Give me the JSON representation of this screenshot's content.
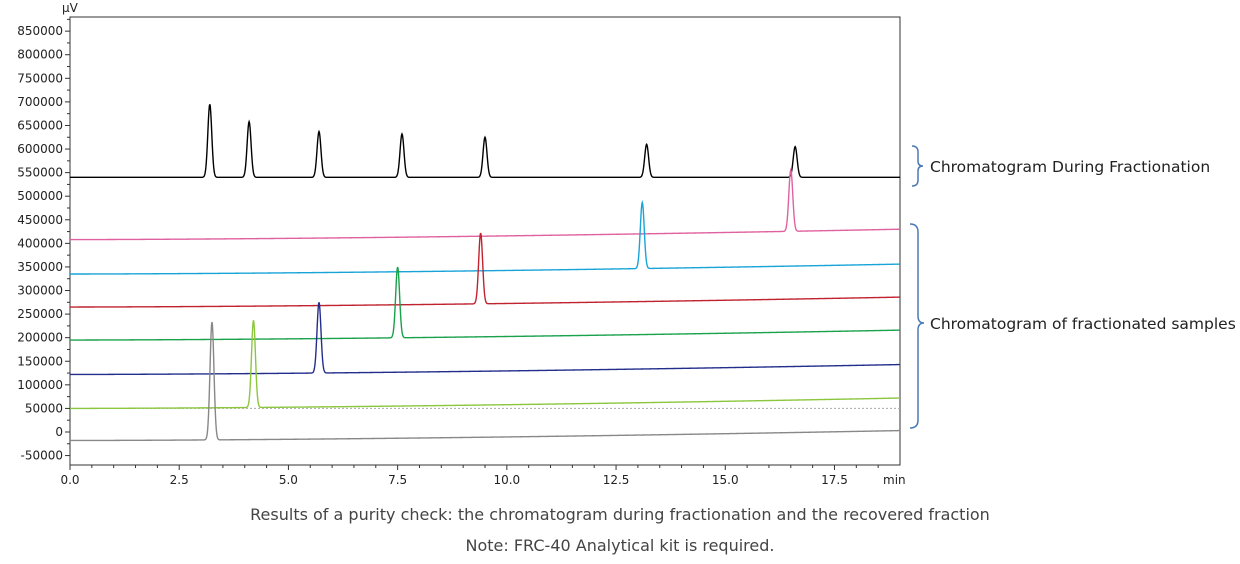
{
  "chart_data": {
    "type": "line",
    "x_unit": "min",
    "y_unit": "µV",
    "xlim": [
      0,
      19
    ],
    "ylim": [
      -70000,
      880000
    ],
    "x_ticks": [
      0.0,
      2.5,
      5.0,
      7.5,
      10.0,
      12.5,
      15.0,
      17.5
    ],
    "x_tick_labels": [
      "0.0",
      "2.5",
      "5.0",
      "7.5",
      "10.0",
      "12.5",
      "15.0",
      "17.5"
    ],
    "y_ticks": [
      -50000,
      0,
      50000,
      100000,
      150000,
      200000,
      250000,
      300000,
      350000,
      400000,
      450000,
      500000,
      550000,
      600000,
      650000,
      700000,
      750000,
      800000,
      850000
    ],
    "y_tick_labels": [
      "-50000",
      "0",
      "50000",
      "100000",
      "150000",
      "200000",
      "250000",
      "300000",
      "350000",
      "400000",
      "450000",
      "500000",
      "550000",
      "600000",
      "650000",
      "700000",
      "750000",
      "800000",
      "850000"
    ],
    "reference_line_y": 50000,
    "series": [
      {
        "color": "#000000",
        "group": "during",
        "baseline_start": 540000,
        "baseline_end": 540000,
        "peaks": [
          {
            "rt": 3.2,
            "height": 155000
          },
          {
            "rt": 4.1,
            "height": 118000
          },
          {
            "rt": 5.7,
            "height": 97000
          },
          {
            "rt": 7.6,
            "height": 92000
          },
          {
            "rt": 9.5,
            "height": 85000
          },
          {
            "rt": 13.2,
            "height": 70000
          },
          {
            "rt": 16.6,
            "height": 65000
          }
        ]
      },
      {
        "color": "#e0619f",
        "group": "fraction",
        "baseline_start": 408000,
        "baseline_end": 430000,
        "peaks": [
          {
            "rt": 16.5,
            "height": 130000
          }
        ]
      },
      {
        "color": "#19a4d8",
        "group": "fraction",
        "baseline_start": 335000,
        "baseline_end": 356000,
        "peaks": [
          {
            "rt": 13.1,
            "height": 140000
          }
        ]
      },
      {
        "color": "#c0232f",
        "group": "fraction",
        "baseline_start": 265000,
        "baseline_end": 286000,
        "peaks": [
          {
            "rt": 9.4,
            "height": 150000
          }
        ]
      },
      {
        "color": "#1aa14b",
        "group": "fraction",
        "baseline_start": 195000,
        "baseline_end": 216000,
        "peaks": [
          {
            "rt": 7.5,
            "height": 150000
          }
        ]
      },
      {
        "color": "#232e8c",
        "group": "fraction",
        "baseline_start": 122000,
        "baseline_end": 143000,
        "peaks": [
          {
            "rt": 5.7,
            "height": 150000
          }
        ]
      },
      {
        "color": "#8cc63f",
        "group": "fraction",
        "baseline_start": 50000,
        "baseline_end": 72000,
        "peaks": [
          {
            "rt": 4.2,
            "height": 185000
          }
        ]
      },
      {
        "color": "#888888",
        "group": "fraction",
        "baseline_start": -18000,
        "baseline_end": 3000,
        "peaks": [
          {
            "rt": 3.25,
            "height": 250000
          }
        ]
      }
    ],
    "annotations": [
      {
        "group": "during",
        "label": "Chromatogram During Fractionation"
      },
      {
        "group": "fraction",
        "label": "Chromatogram of fractionated samples"
      }
    ]
  },
  "caption": {
    "line1": "Results of a purity check: the chromatogram during fractionation and the recovered fraction",
    "line2": "Note: FRC-40 Analytical kit is required."
  }
}
